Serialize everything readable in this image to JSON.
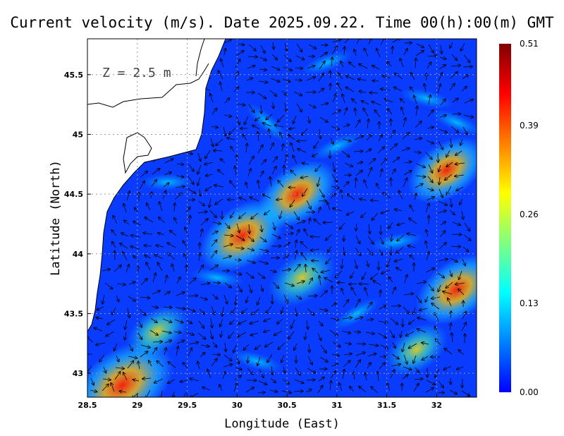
{
  "title": "Current velocity (m/s). Date 2025.09.22. Time 00(h):00(m) GMT",
  "depth_label": "Z = 2.5 m",
  "xlabel": "Longitude (East)",
  "ylabel": "Latitude (North)",
  "x_ticks": [
    "28.5",
    "29",
    "29.5",
    "30",
    "30.5",
    "31",
    "31.5",
    "32"
  ],
  "y_ticks": [
    "43",
    "43.5",
    "44",
    "44.5",
    "45",
    "45.5"
  ],
  "colorbar": {
    "ticks": [
      "0.51",
      "0.39",
      "0.26",
      "0.13",
      "0.00"
    ],
    "tick_values": [
      0.51,
      0.39,
      0.26,
      0.13,
      0.0
    ],
    "min": 0.0,
    "max": 0.51,
    "colors": [
      "#0000ff",
      "#0080ff",
      "#00ffff",
      "#80ff80",
      "#ffff00",
      "#ff8000",
      "#ff0000",
      "#800000"
    ]
  },
  "map": {
    "lon_range": [
      28.5,
      32.4
    ],
    "lat_range": [
      42.8,
      45.8
    ],
    "grid": true,
    "land_color": "#ffffff",
    "coast_color": "#000000",
    "highlights": [
      {
        "lon": 30.05,
        "lat": 44.15,
        "speed": 0.38
      },
      {
        "lon": 30.6,
        "lat": 44.5,
        "speed": 0.34
      },
      {
        "lon": 28.85,
        "lat": 42.9,
        "speed": 0.51
      },
      {
        "lon": 32.2,
        "lat": 43.7,
        "speed": 0.36
      },
      {
        "lon": 32.1,
        "lat": 44.7,
        "speed": 0.33
      },
      {
        "lon": 31.8,
        "lat": 43.2,
        "speed": 0.22
      },
      {
        "lon": 30.65,
        "lat": 43.8,
        "speed": 0.26
      },
      {
        "lon": 29.2,
        "lat": 43.35,
        "speed": 0.22
      }
    ]
  }
}
